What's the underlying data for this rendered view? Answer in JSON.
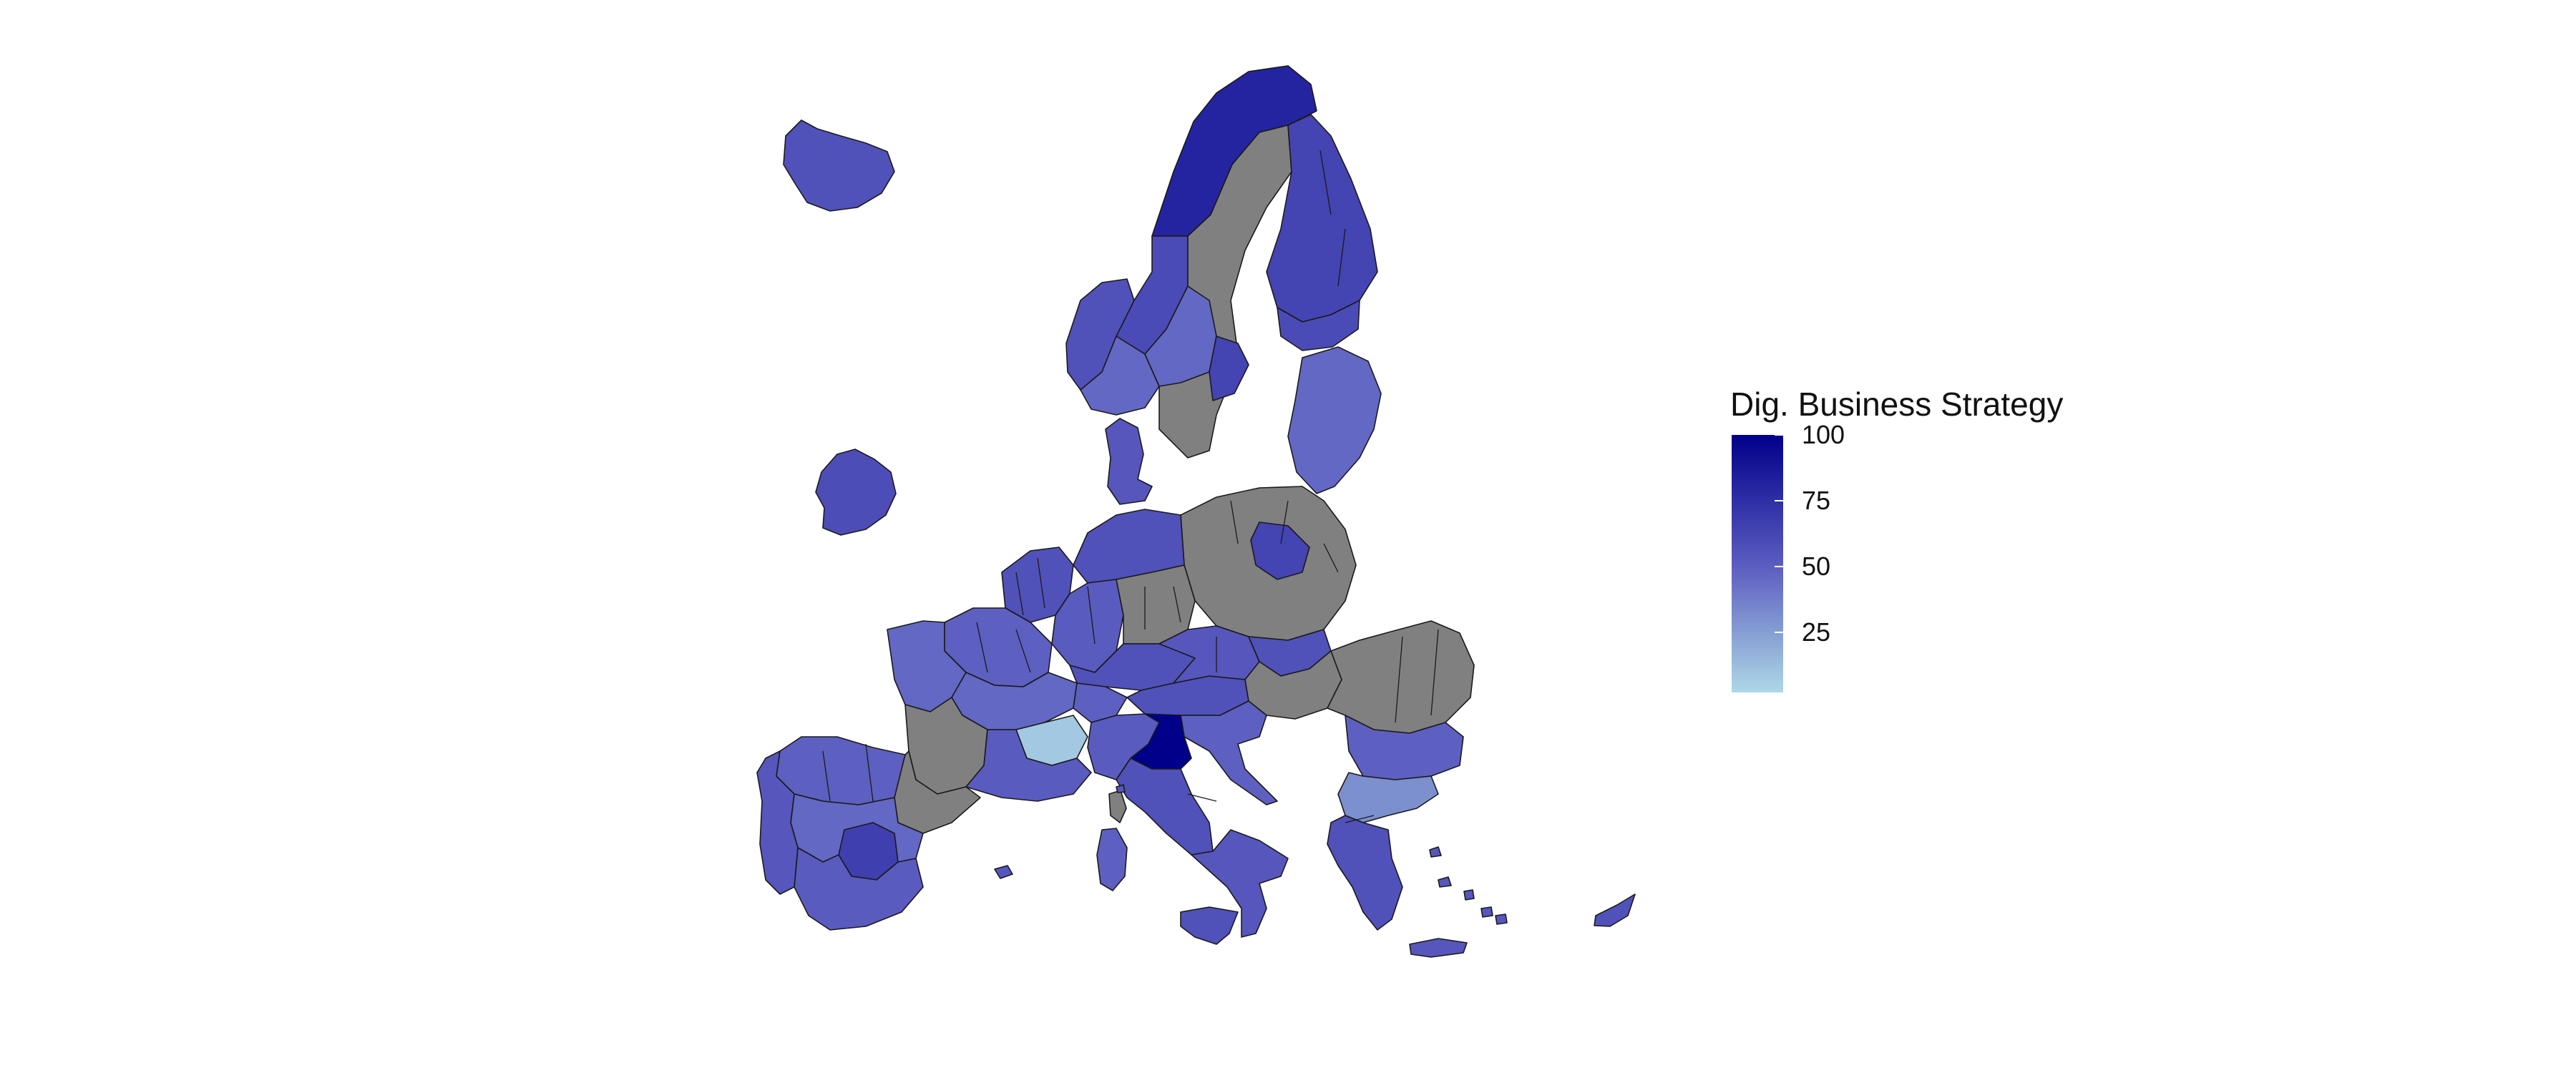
{
  "map": {
    "legend": {
      "title": "Dig. Business Strategy",
      "ticks": [
        {
          "label": "100",
          "value": 100
        },
        {
          "label": "75",
          "value": 75
        },
        {
          "label": "50",
          "value": 50
        },
        {
          "label": "25",
          "value": 25
        }
      ],
      "min_value": 2,
      "max_value": 100,
      "color_low": "#ADD8E6",
      "color_high": "#00008B"
    },
    "no_data_color": "#808080",
    "regions": [
      {
        "name": "iceland",
        "value": 55
      },
      {
        "name": "ireland",
        "value": 57
      },
      {
        "name": "norway-north",
        "value": 80
      },
      {
        "name": "norway-central",
        "value": 58
      },
      {
        "name": "norway-west",
        "value": 55
      },
      {
        "name": "norway-south",
        "value": 45
      },
      {
        "name": "sweden",
        "value": null
      },
      {
        "name": "sweden-stockholm",
        "value": 62
      },
      {
        "name": "sweden-east-middle",
        "value": 45
      },
      {
        "name": "finland",
        "value": 62
      },
      {
        "name": "finland-south",
        "value": 58
      },
      {
        "name": "denmark",
        "value": 52
      },
      {
        "name": "baltics",
        "value": 45
      },
      {
        "name": "poland",
        "value": null
      },
      {
        "name": "poland-mazovia",
        "value": 62
      },
      {
        "name": "germany-north",
        "value": 55
      },
      {
        "name": "germany-west",
        "value": 50
      },
      {
        "name": "germany-east",
        "value": null
      },
      {
        "name": "germany-south",
        "value": 55
      },
      {
        "name": "benelux",
        "value": 55
      },
      {
        "name": "france-north",
        "value": 48
      },
      {
        "name": "france-brittany",
        "value": 45
      },
      {
        "name": "france-central",
        "value": 45
      },
      {
        "name": "france-southwest",
        "value": null
      },
      {
        "name": "france-rhone-alpes",
        "value": 8
      },
      {
        "name": "france-south",
        "value": 50
      },
      {
        "name": "switzerland",
        "value": 48
      },
      {
        "name": "austria",
        "value": 55
      },
      {
        "name": "czechia",
        "value": 52
      },
      {
        "name": "slovakia",
        "value": 55
      },
      {
        "name": "hungary",
        "value": null
      },
      {
        "name": "slovenia-croatia",
        "value": 48
      },
      {
        "name": "romania",
        "value": null
      },
      {
        "name": "bulgaria",
        "value": 48
      },
      {
        "name": "greece-north",
        "value": 30
      },
      {
        "name": "greece-south",
        "value": 55
      },
      {
        "name": "italy-northwest",
        "value": 50
      },
      {
        "name": "italy-northeast",
        "value": 100
      },
      {
        "name": "italy-central",
        "value": 55
      },
      {
        "name": "italy-south",
        "value": 52
      },
      {
        "name": "sicily",
        "value": 55
      },
      {
        "name": "sardinia",
        "value": 48
      },
      {
        "name": "corsica",
        "value": null
      },
      {
        "name": "spain-north",
        "value": 48
      },
      {
        "name": "spain-central",
        "value": 45
      },
      {
        "name": "spain-madrid",
        "value": 65
      },
      {
        "name": "spain-catalonia",
        "value": null
      },
      {
        "name": "spain-south",
        "value": 50
      },
      {
        "name": "portugal",
        "value": 52
      },
      {
        "name": "crete",
        "value": 52
      },
      {
        "name": "cyprus",
        "value": 55
      }
    ]
  }
}
